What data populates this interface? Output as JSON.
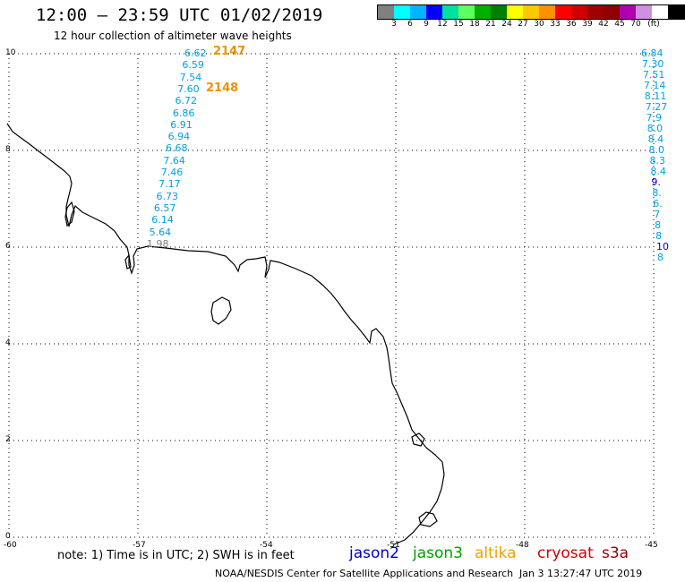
{
  "header": {
    "title": "12:00 – 23:59 UTC 01/02/2019",
    "subtitle": "12 hour collection of altimeter wave heights"
  },
  "legend": {
    "unit": "(ft)",
    "colors": [
      "#808080",
      "#00ffff",
      "#00b4ff",
      "#0000ff",
      "#00e0a0",
      "#60ff60",
      "#00b000",
      "#008000",
      "#ffff00",
      "#ffc800",
      "#ff9000",
      "#ff0000",
      "#d00000",
      "#a00000",
      "#900000",
      "#b000b0",
      "#d090e0",
      "#ffffff",
      "#000000"
    ],
    "labels": [
      "3",
      "6",
      "9",
      "12",
      "15",
      "18",
      "21",
      "24",
      "27",
      "30",
      "33",
      "36",
      "39",
      "42",
      "45",
      "70"
    ]
  },
  "axes": {
    "x_ticks": [
      "-60",
      "-57",
      "-54",
      "-51",
      "-48",
      "-45"
    ],
    "y_ticks": [
      "10",
      "8",
      "6",
      "4",
      "2",
      "0"
    ]
  },
  "track_left": {
    "orbits": [
      "2147",
      "2148"
    ],
    "values": [
      "6.62",
      "6.59",
      "7.54",
      "7.60",
      "6.72",
      "6.86",
      "6.91",
      "6.94",
      "6.68",
      "7.64",
      "7.46",
      "7.17",
      "6.73",
      "6.57",
      "6.14",
      "5.64",
      "1.98"
    ]
  },
  "track_right": {
    "values": [
      "6.84",
      "7.30",
      "7.51",
      "7.14",
      "8.11",
      "7.27",
      "7.9",
      "8.0",
      "8.4",
      "8.0",
      "8.3",
      "8.4",
      "9.",
      "8.",
      "6.",
      "7",
      "8",
      "8",
      "10",
      "8"
    ]
  },
  "notes": {
    "note": "note:  1) Time is in UTC;  2) SWH is in feet",
    "satellites": [
      "jason2",
      "jason3",
      "altika",
      "cryosat",
      "s3a"
    ],
    "footer": "NOAA/NESDIS Center for Satellite Applications and Research",
    "timestamp": "Jan  3 13:27:47 UTC 2019"
  }
}
